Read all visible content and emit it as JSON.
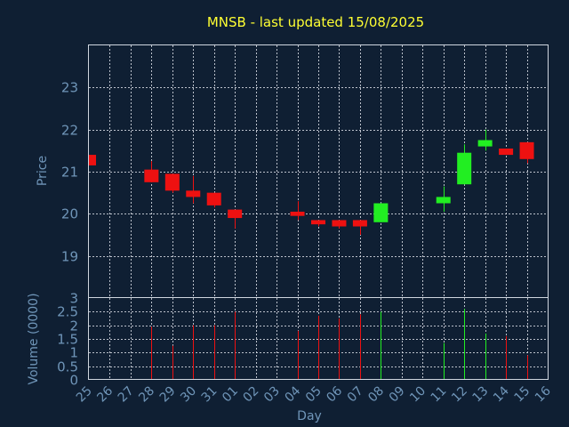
{
  "chart_data": {
    "type": "candlestick",
    "title": "MNSB - last updated 15/08/2025",
    "xlabel": "Day",
    "price_panel": {
      "ylabel": "Price",
      "ylim": [
        18,
        24
      ],
      "yticks": [
        19,
        20,
        21,
        22,
        23
      ]
    },
    "volume_panel": {
      "ylabel": "Volume (0000)",
      "ylim": [
        0,
        3
      ],
      "yticks": [
        0,
        0.5,
        1,
        1.5,
        2,
        2.5,
        3
      ],
      "ytick_labels": [
        "0",
        "0.5",
        "1",
        "1.5",
        "2",
        "2.5",
        "3"
      ]
    },
    "x_labels": [
      "25",
      "26",
      "27",
      "28",
      "29",
      "30",
      "31",
      "01",
      "02",
      "03",
      "04",
      "05",
      "06",
      "07",
      "08",
      "09",
      "10",
      "11",
      "12",
      "13",
      "14",
      "15",
      "16"
    ],
    "candles": [
      {
        "day": "25",
        "open": 21.4,
        "high": 21.4,
        "low": 21.15,
        "close": 21.15,
        "volume": 0
      },
      {
        "day": "28",
        "open": 21.05,
        "high": 21.25,
        "low": 20.75,
        "close": 20.75,
        "volume": 1.95
      },
      {
        "day": "29",
        "open": 20.95,
        "high": 20.95,
        "low": 20.5,
        "close": 20.55,
        "volume": 1.25
      },
      {
        "day": "30",
        "open": 20.55,
        "high": 20.9,
        "low": 20.25,
        "close": 20.4,
        "volume": 2.0
      },
      {
        "day": "31",
        "open": 20.5,
        "high": 20.5,
        "low": 20.15,
        "close": 20.2,
        "volume": 2.0
      },
      {
        "day": "01",
        "open": 20.1,
        "high": 20.1,
        "low": 19.65,
        "close": 19.9,
        "volume": 2.5
      },
      {
        "day": "04",
        "open": 20.05,
        "high": 20.3,
        "low": 19.85,
        "close": 19.95,
        "volume": 1.8
      },
      {
        "day": "05",
        "open": 19.85,
        "high": 19.85,
        "low": 19.7,
        "close": 19.75,
        "volume": 2.35
      },
      {
        "day": "06",
        "open": 19.85,
        "high": 19.85,
        "low": 19.65,
        "close": 19.7,
        "volume": 2.25
      },
      {
        "day": "07",
        "open": 19.85,
        "high": 19.85,
        "low": 19.5,
        "close": 19.7,
        "volume": 2.4
      },
      {
        "day": "08",
        "open": 19.8,
        "high": 20.25,
        "low": 19.8,
        "close": 20.25,
        "volume": 2.5
      },
      {
        "day": "11",
        "open": 20.25,
        "high": 20.65,
        "low": 20.05,
        "close": 20.4,
        "volume": 1.35
      },
      {
        "day": "12",
        "open": 20.7,
        "high": 21.65,
        "low": 20.7,
        "close": 21.45,
        "volume": 2.6
      },
      {
        "day": "13",
        "open": 21.6,
        "high": 22.0,
        "low": 21.5,
        "close": 21.75,
        "volume": 1.7
      },
      {
        "day": "14",
        "open": 21.55,
        "high": 21.55,
        "low": 21.4,
        "close": 21.4,
        "volume": 1.6
      },
      {
        "day": "15",
        "open": 21.7,
        "high": 21.7,
        "low": 21.2,
        "close": 21.3,
        "volume": 0.9
      }
    ],
    "grid": true,
    "colors": {
      "background": "#0f1f33",
      "up": "#22ee22",
      "down": "#ee1111",
      "title": "#ffff33",
      "axis_text": "#6f95b8",
      "frame": "#cfd6df"
    }
  }
}
